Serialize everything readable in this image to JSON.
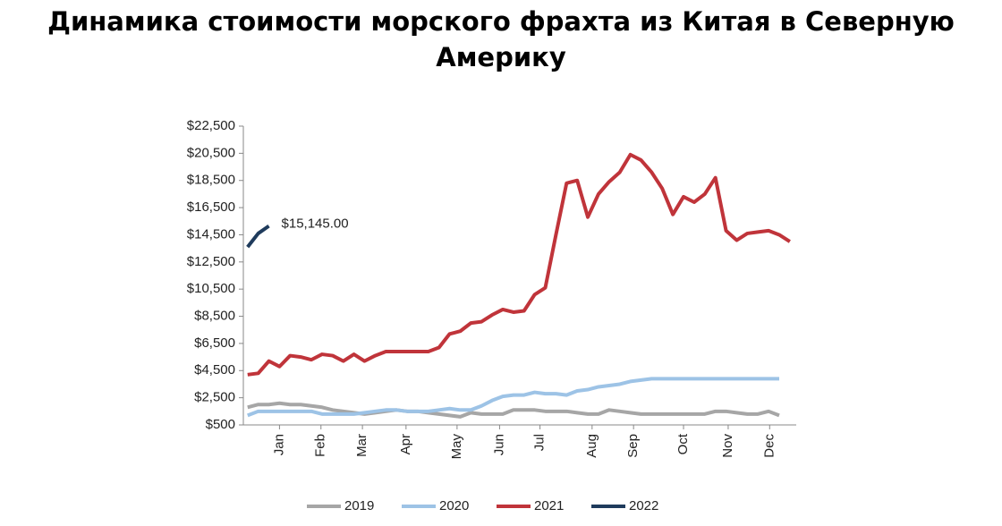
{
  "chart_data": {
    "type": "line",
    "title": "Динамика стоимости морского фрахта из Китая в Северную Америку",
    "annotation": "$15,145.00",
    "x": [
      1,
      2,
      3,
      4,
      5,
      6,
      7,
      8,
      9,
      10,
      11,
      12,
      13,
      14,
      15,
      16,
      17,
      18,
      19,
      20,
      21,
      22,
      23,
      24,
      25,
      26,
      27,
      28,
      29,
      30,
      31,
      32,
      33,
      34,
      35,
      36,
      37,
      38,
      39,
      40,
      41,
      42,
      43,
      44,
      45,
      46,
      47,
      48,
      49,
      50,
      51,
      52
    ],
    "xlim": [
      0.6,
      52.6
    ],
    "xticks": [
      {
        "value": 4,
        "label": "Jan"
      },
      {
        "value": 7.9,
        "label": "Feb"
      },
      {
        "value": 11.8,
        "label": "Mar"
      },
      {
        "value": 15.9,
        "label": "Apr"
      },
      {
        "value": 20.7,
        "label": "May"
      },
      {
        "value": 24.7,
        "label": "Jun"
      },
      {
        "value": 28.5,
        "label": "Jul"
      },
      {
        "value": 33.4,
        "label": "Aug"
      },
      {
        "value": 37.3,
        "label": "Sep"
      },
      {
        "value": 42,
        "label": "Oct"
      },
      {
        "value": 46.2,
        "label": "Nov"
      },
      {
        "value": 50.1,
        "label": "Dec"
      }
    ],
    "ylim": [
      500,
      22500
    ],
    "yticks": [
      {
        "value": 500,
        "label": "$500"
      },
      {
        "value": 2500,
        "label": "$2,500"
      },
      {
        "value": 4500,
        "label": "$4,500"
      },
      {
        "value": 6500,
        "label": "$6,500"
      },
      {
        "value": 8500,
        "label": "$8,500"
      },
      {
        "value": 10500,
        "label": "$10,500"
      },
      {
        "value": 12500,
        "label": "$12,500"
      },
      {
        "value": 14500,
        "label": "$14,500"
      },
      {
        "value": 16500,
        "label": "$16,500"
      },
      {
        "value": 18500,
        "label": "$18,500"
      },
      {
        "value": 20500,
        "label": "$20,500"
      },
      {
        "value": 22500,
        "label": "$22,500"
      }
    ],
    "series": [
      {
        "name": "2019",
        "color": "#a6a6a6",
        "values": [
          1800,
          2000,
          2000,
          2100,
          2000,
          2000,
          1900,
          1800,
          1600,
          1500,
          1400,
          1300,
          1400,
          1500,
          1600,
          1500,
          1500,
          1400,
          1300,
          1200,
          1100,
          1400,
          1300,
          1300,
          1300,
          1600,
          1600,
          1600,
          1500,
          1500,
          1500,
          1400,
          1300,
          1300,
          1600,
          1500,
          1400,
          1300,
          1300,
          1300,
          1300,
          1300,
          1300,
          1300,
          1500,
          1500,
          1400,
          1300,
          1300,
          1500,
          1200,
          null
        ]
      },
      {
        "name": "2020",
        "color": "#9dc3e6",
        "values": [
          1200,
          1500,
          1500,
          1500,
          1500,
          1500,
          1500,
          1300,
          1300,
          1300,
          1300,
          1400,
          1500,
          1600,
          1600,
          1500,
          1500,
          1500,
          1600,
          1700,
          1600,
          1600,
          1900,
          2300,
          2600,
          2700,
          2700,
          2900,
          2800,
          2800,
          2700,
          3000,
          3100,
          3300,
          3400,
          3500,
          3700,
          3800,
          3900,
          3900,
          3900,
          3900,
          3900,
          3900,
          3900,
          3900,
          3900,
          3900,
          3900,
          3900,
          3900,
          null
        ]
      },
      {
        "name": "2021",
        "color": "#c0343a",
        "values": [
          4200,
          4300,
          5200,
          4800,
          5600,
          5500,
          5300,
          5700,
          5600,
          5200,
          5700,
          5200,
          5600,
          5900,
          5900,
          5900,
          5900,
          5900,
          6200,
          7200,
          7400,
          8000,
          8100,
          8600,
          9000,
          8800,
          8900,
          10100,
          10600,
          14500,
          18300,
          18500,
          15800,
          17500,
          18400,
          19100,
          20400,
          20000,
          19100,
          17900,
          16000,
          17300,
          16900,
          17500,
          18700,
          14800,
          14100,
          14600,
          14700,
          14800,
          14500,
          14000
        ]
      },
      {
        "name": "2022",
        "color": "#1f3b5c",
        "values": [
          13600,
          14600,
          15145,
          null,
          null,
          null,
          null,
          null,
          null,
          null,
          null,
          null,
          null,
          null,
          null,
          null,
          null,
          null,
          null,
          null,
          null,
          null,
          null,
          null,
          null,
          null,
          null,
          null,
          null,
          null,
          null,
          null,
          null,
          null,
          null,
          null,
          null,
          null,
          null,
          null,
          null,
          null,
          null,
          null,
          null,
          null,
          null,
          null,
          null,
          null,
          null,
          null
        ]
      }
    ]
  }
}
